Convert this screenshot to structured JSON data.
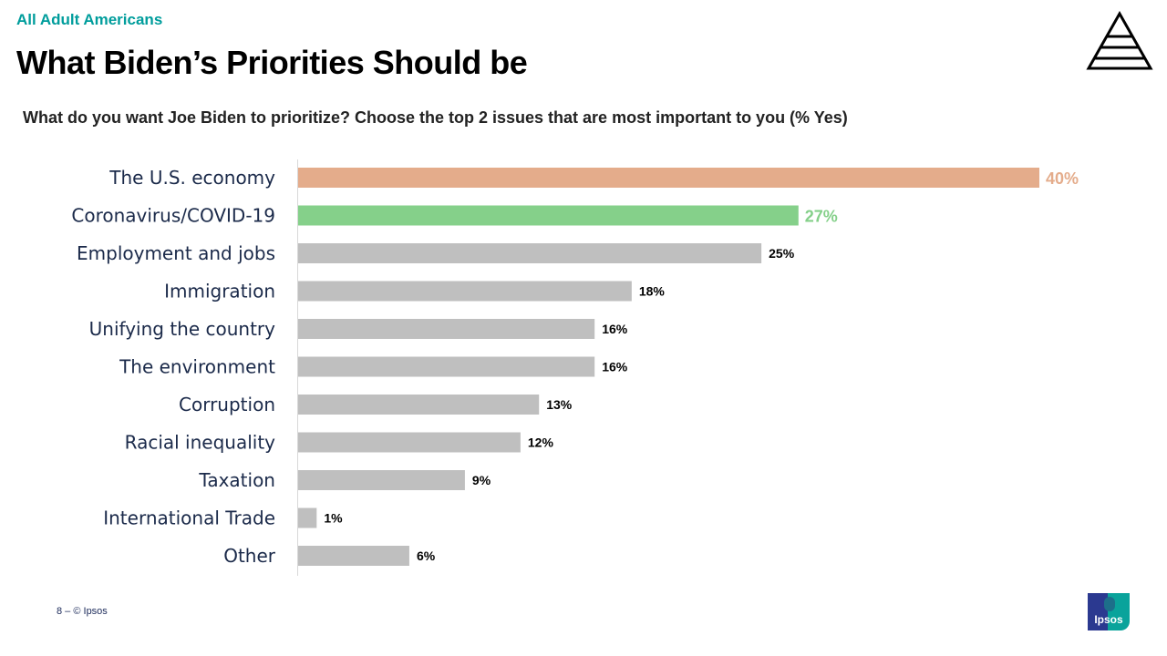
{
  "header": {
    "supertitle": "All Adult Americans",
    "title": "What Biden’s Priorities Should be",
    "question": "What do you want Joe Biden to prioritize? Choose the top 2 issues that are most important to you (% Yes)"
  },
  "footer": {
    "page": "8 –  © Ipsos"
  },
  "logos": {
    "pyramid": "pyramid-logo",
    "brand": "Ipsos"
  },
  "colors": {
    "highlight1": "#e4ac8b",
    "highlight2": "#85d08a",
    "default": "#bfbfbf",
    "title_accent": "#009d9c"
  },
  "chart_data": {
    "type": "bar",
    "orientation": "horizontal",
    "categories": [
      "The U.S. economy",
      "Coronavirus/COVID-19",
      "Employment and jobs",
      "Immigration",
      "Unifying the country",
      "The environment",
      "Corruption",
      "Racial inequality",
      "Taxation",
      "International Trade",
      "Other"
    ],
    "values": [
      40,
      27,
      25,
      18,
      16,
      16,
      13,
      12,
      9,
      1,
      6
    ],
    "value_labels": [
      "40%",
      "27%",
      "25%",
      "18%",
      "16%",
      "16%",
      "13%",
      "12%",
      "9%",
      "1%",
      "6%"
    ],
    "bar_colors": [
      "#e4ac8b",
      "#85d08a",
      "#bfbfbf",
      "#bfbfbf",
      "#bfbfbf",
      "#bfbfbf",
      "#bfbfbf",
      "#bfbfbf",
      "#bfbfbf",
      "#bfbfbf",
      "#bfbfbf"
    ],
    "xlim": [
      0,
      40
    ],
    "grid": false
  }
}
